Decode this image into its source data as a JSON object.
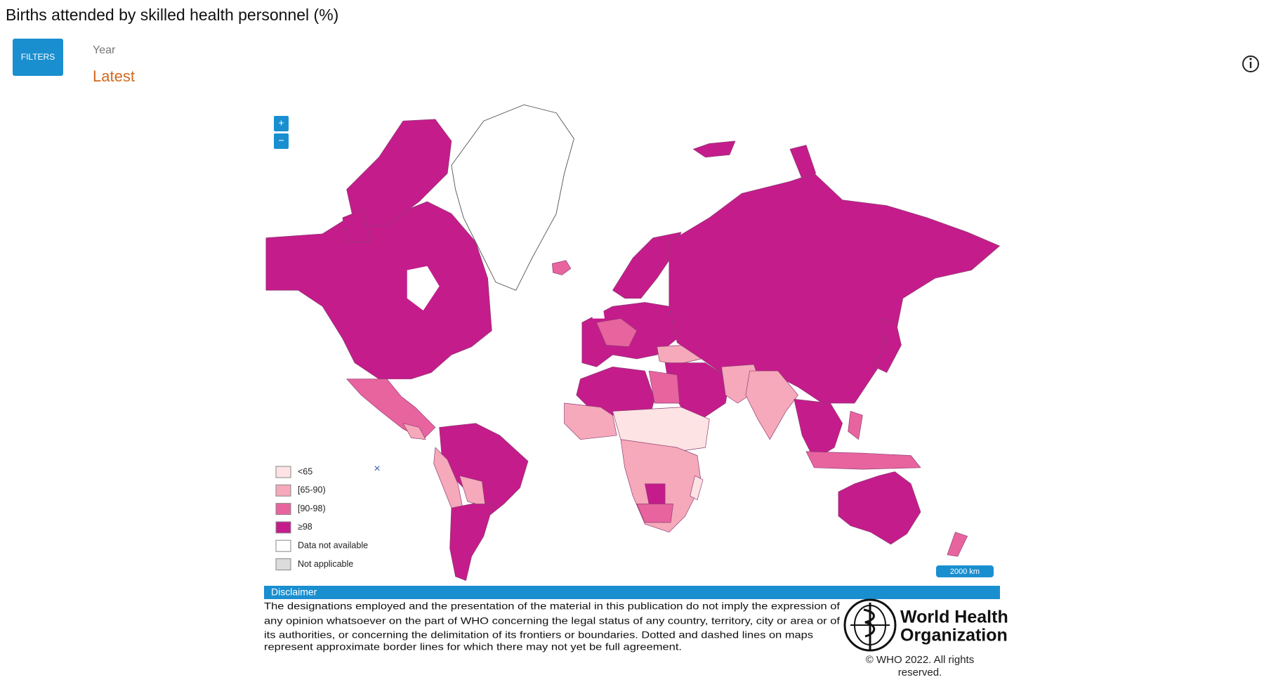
{
  "header": {
    "title": "Births attended by skilled health personnel (%)"
  },
  "filters": {
    "button": "FILTERS",
    "year_label": "Year",
    "year_value": "Latest"
  },
  "map": {
    "zoom_in": "+",
    "zoom_out": "−",
    "legend": {
      "close": "×",
      "items": [
        "<65",
        "[65-90)",
        "[90-98)",
        "≥98",
        "Data not available",
        "Not applicable"
      ]
    },
    "scale_bar": "2000 km"
  },
  "disclaimer": {
    "heading": "Disclaimer",
    "lines": [
      "The designations employed and the presentation of the material in this publication do not imply the expression of",
      "any opinion whatsoever on the part of WHO concerning the legal status of any country, territory, city or area or of",
      "its authorities, or concerning the delimitation of its frontiers or boundaries. Dotted and dashed lines on maps",
      "represent approximate border lines for which there may not yet be full agreement."
    ]
  },
  "logo": {
    "lines": [
      "World Health",
      "Organization"
    ]
  },
  "copyright": [
    "© WHO 2022. All rights",
    "reserved."
  ]
}
